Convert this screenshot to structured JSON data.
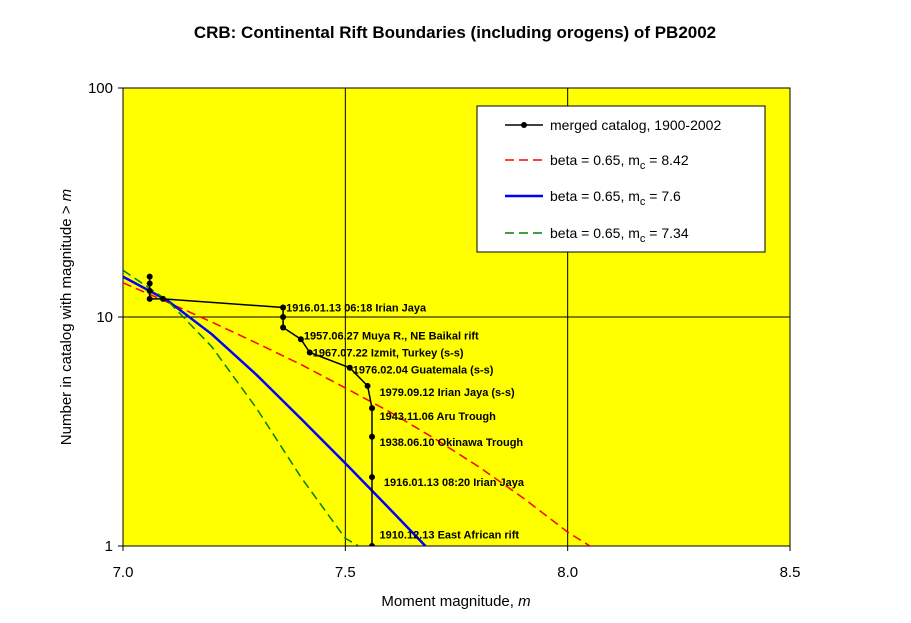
{
  "chart_data": {
    "type": "line",
    "title": "CRB: Continental Rift Boundaries (including orogens) of PB2002",
    "xlabel_text": "Moment magnitude, ",
    "xlabel_var": "m",
    "ylabel_text": "Number in catalog with magnitude > ",
    "ylabel_var": "m",
    "xlim": [
      7.0,
      8.5
    ],
    "ylim": [
      1,
      100
    ],
    "yscale": "log",
    "grid": true,
    "plot_background": "#FFFF00",
    "x_ticks": [
      7.0,
      7.5,
      8.0,
      8.5
    ],
    "x_tick_labels": [
      "7.0",
      "7.5",
      "8.0",
      "8.5"
    ],
    "y_ticks": [
      1,
      10,
      100
    ],
    "y_tick_labels": [
      "1",
      "10",
      "100"
    ],
    "legend_position": "top-right",
    "series": [
      {
        "name": "merged catalog, 1900-2002",
        "color": "#000000",
        "style": "solid-markers",
        "x": [
          7.06,
          7.06,
          7.06,
          7.06,
          7.09,
          7.36,
          7.36,
          7.36,
          7.4,
          7.42,
          7.51,
          7.55,
          7.56,
          7.56,
          7.56,
          7.56
        ],
        "y": [
          15,
          14,
          13,
          12,
          12,
          11,
          10,
          9,
          8,
          7,
          6,
          5,
          4,
          3,
          2,
          1
        ]
      },
      {
        "name": "beta = 0.65, m",
        "name_sub": "c",
        "name_tail": " = 8.42",
        "color": "#FF0000",
        "style": "dashed",
        "x": [
          7.0,
          7.1,
          7.2,
          7.3,
          7.4,
          7.5,
          7.6,
          7.7,
          7.8,
          7.9,
          8.0,
          8.05
        ],
        "y": [
          14.1,
          11.6,
          9.5,
          7.7,
          6.2,
          4.9,
          3.85,
          2.95,
          2.22,
          1.62,
          1.15,
          1.0
        ]
      },
      {
        "name": "beta = 0.65, m",
        "name_sub": "c",
        "name_tail": " = 7.6",
        "color": "#0000FF",
        "style": "solid",
        "x": [
          7.0,
          7.1,
          7.2,
          7.3,
          7.4,
          7.5,
          7.6,
          7.68
        ],
        "y": [
          15.0,
          11.8,
          8.4,
          5.6,
          3.6,
          2.3,
          1.45,
          1.0
        ]
      },
      {
        "name": "beta = 0.65, m",
        "name_sub": "c",
        "name_tail": " = 7.34",
        "color": "#008000",
        "style": "dashed",
        "x": [
          7.0,
          7.1,
          7.2,
          7.3,
          7.4,
          7.5,
          7.53
        ],
        "y": [
          16.0,
          11.8,
          7.4,
          4.0,
          2.0,
          1.08,
          1.0
        ]
      }
    ],
    "annotations": [
      {
        "text": "1916.01.13 06:18 Irian Jaya",
        "x": 7.36,
        "y": 11
      },
      {
        "text": "1957.06.27 Muya R., NE Baikal rift",
        "x": 7.4,
        "y": 8.3
      },
      {
        "text": "1967.07.22 Izmit, Turkey (s-s)",
        "x": 7.42,
        "y": 7.0
      },
      {
        "text": "1976.02.04 Guatemala (s-s)",
        "x": 7.51,
        "y": 5.9
      },
      {
        "text": "1979.09.12 Irian Jaya (s-s)",
        "x": 7.57,
        "y": 4.7
      },
      {
        "text": "1943.11.06 Aru Trough",
        "x": 7.57,
        "y": 3.7
      },
      {
        "text": "1938.06.10 Okinawa Trough",
        "x": 7.57,
        "y": 2.85
      },
      {
        "text": "1916.01.13 08:20 Irian Jaya",
        "x": 7.58,
        "y": 1.9
      },
      {
        "text": "1910.12.13 East African rift",
        "x": 7.57,
        "y": 1.12
      }
    ]
  }
}
